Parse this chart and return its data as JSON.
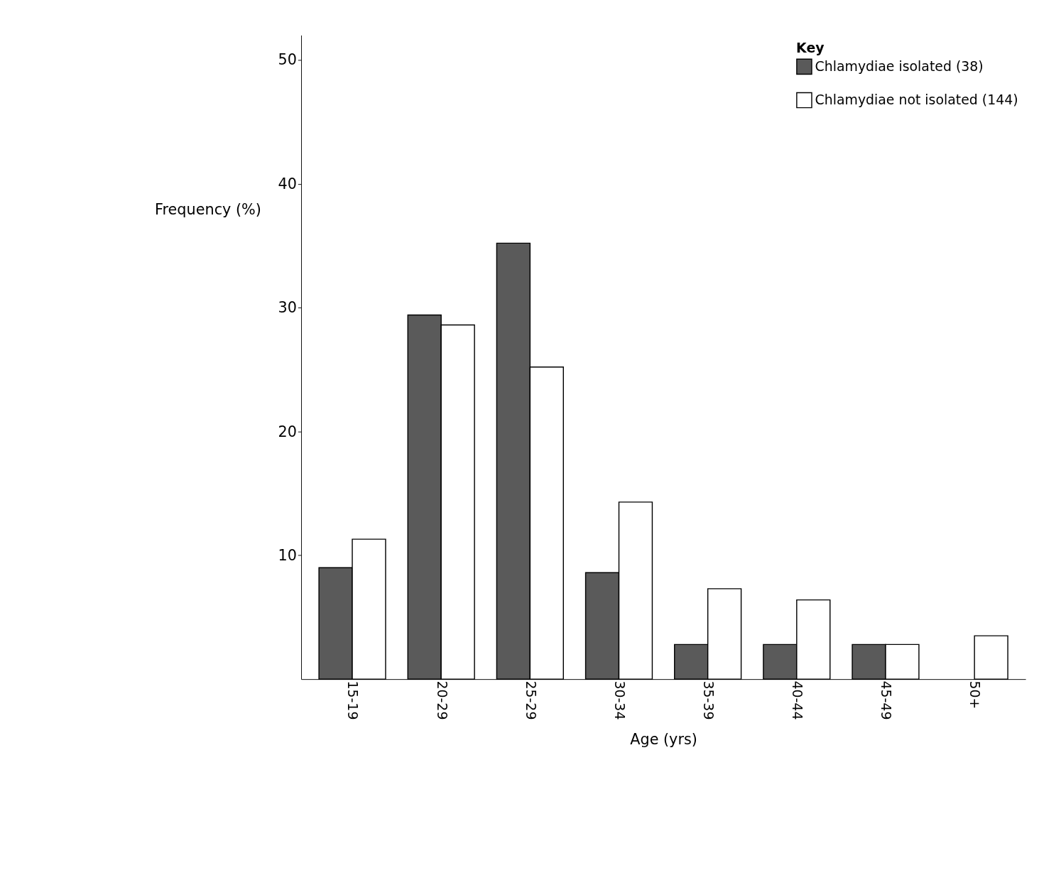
{
  "chart_data": {
    "type": "bar",
    "xlabel": "Age (yrs)",
    "ylabel": "Frequency (%)",
    "legend_title": "Key",
    "categories": [
      "15-19",
      "20-29",
      "25-29",
      "30-34",
      "35-39",
      "40-44",
      "45-49",
      "50+"
    ],
    "series": [
      {
        "name": "Chlamydiae isolated (38)",
        "color": "#5a5a5a",
        "values": [
          9.0,
          29.4,
          35.2,
          8.6,
          2.8,
          2.8,
          2.8,
          null
        ]
      },
      {
        "name": "Chlamydiae not isolated (144)",
        "color": "#ffffff",
        "values": [
          11.3,
          28.6,
          25.2,
          14.3,
          7.3,
          6.4,
          2.8,
          3.5
        ]
      }
    ],
    "ylim": [
      0,
      52
    ],
    "yticks": [
      10,
      20,
      30,
      40,
      50
    ],
    "grid": false,
    "legend": "top right"
  }
}
